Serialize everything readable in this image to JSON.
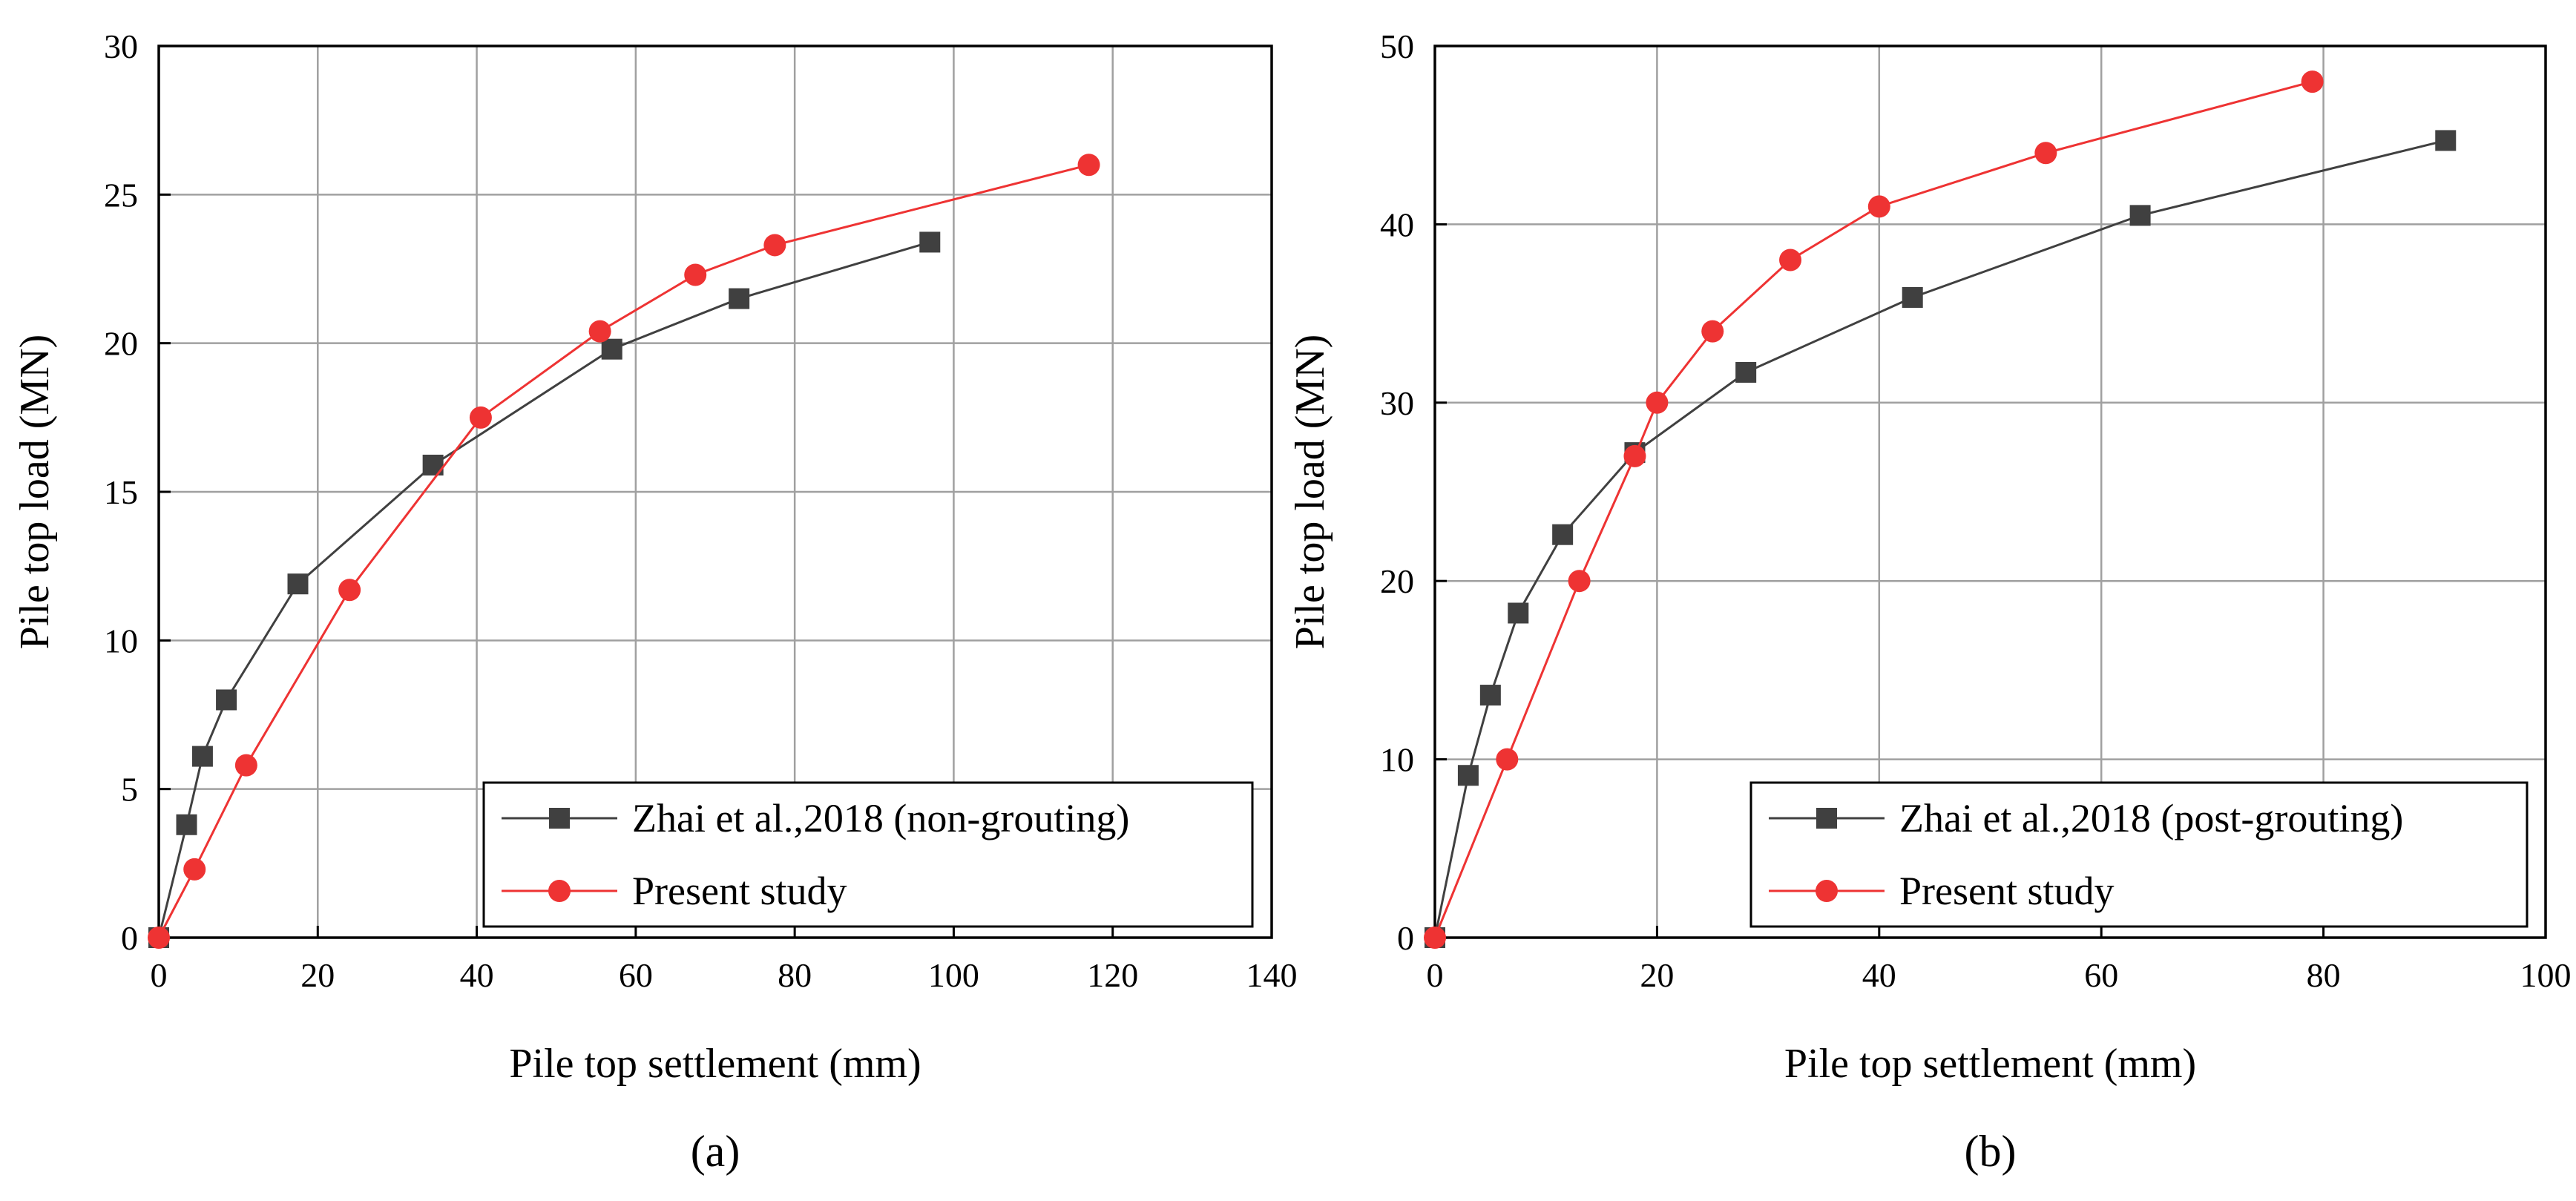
{
  "chart_data": [
    {
      "type": "line",
      "panel_label": "(a)",
      "xlabel": "Pile top settlement (mm)",
      "ylabel": "Pile top load (MN)",
      "xlim": [
        0,
        140
      ],
      "ylim": [
        0,
        30
      ],
      "xticks": [
        0,
        20,
        40,
        60,
        80,
        100,
        120,
        140
      ],
      "yticks": [
        0,
        5,
        10,
        15,
        20,
        25,
        30
      ],
      "grid": true,
      "legend_position": "bottom-right",
      "series": [
        {
          "name": "Zhai et al.,2018 (non-grouting)",
          "color": "#404040",
          "marker": "square",
          "points": [
            [
              0,
              0
            ],
            [
              3.5,
              3.8
            ],
            [
              5.5,
              6.1
            ],
            [
              8.5,
              8.0
            ],
            [
              17.5,
              11.9
            ],
            [
              34.5,
              15.9
            ],
            [
              57,
              19.8
            ],
            [
              73,
              21.5
            ],
            [
              97,
              23.4
            ]
          ]
        },
        {
          "name": "Present study",
          "color": "#ee3333",
          "marker": "circle",
          "points": [
            [
              0,
              0
            ],
            [
              4.5,
              2.3
            ],
            [
              11,
              5.8
            ],
            [
              24,
              11.7
            ],
            [
              40.5,
              17.5
            ],
            [
              55.5,
              20.4
            ],
            [
              67.5,
              22.3
            ],
            [
              77.5,
              23.3
            ],
            [
              117,
              26.0
            ]
          ]
        }
      ]
    },
    {
      "type": "line",
      "panel_label": "(b)",
      "xlabel": "Pile top settlement (mm)",
      "ylabel": "Pile top load (MN)",
      "xlim": [
        0,
        100
      ],
      "ylim": [
        0,
        50
      ],
      "xticks": [
        0,
        20,
        40,
        60,
        80,
        100
      ],
      "yticks": [
        0,
        10,
        20,
        30,
        40,
        50
      ],
      "grid": true,
      "legend_position": "bottom-right",
      "series": [
        {
          "name": "Zhai et al.,2018 (post-grouting)",
          "color": "#404040",
          "marker": "square",
          "points": [
            [
              0,
              0
            ],
            [
              3,
              9.1
            ],
            [
              5,
              13.6
            ],
            [
              7.5,
              18.2
            ],
            [
              11.5,
              22.6
            ],
            [
              18,
              27.2
            ],
            [
              28,
              31.7
            ],
            [
              43,
              35.9
            ],
            [
              63.5,
              40.5
            ],
            [
              91,
              44.7
            ]
          ]
        },
        {
          "name": "Present study",
          "color": "#ee3333",
          "marker": "circle",
          "points": [
            [
              0,
              0
            ],
            [
              6.5,
              10.0
            ],
            [
              13,
              20.0
            ],
            [
              18,
              27.0
            ],
            [
              20,
              30.0
            ],
            [
              25,
              34.0
            ],
            [
              32,
              38.0
            ],
            [
              40,
              41.0
            ],
            [
              55,
              44.0
            ],
            [
              79,
              48.0
            ]
          ]
        }
      ]
    }
  ]
}
